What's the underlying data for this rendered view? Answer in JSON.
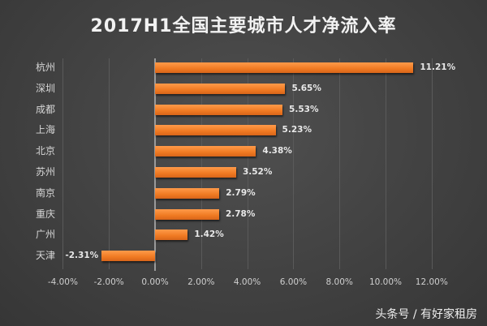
{
  "title": "2017H1全国主要城市人才净流入率",
  "watermark": "头条号 / 有好家租房",
  "colors": {
    "bar": "#f07a22",
    "background": "#444444",
    "text": "#e8e8e8"
  },
  "chart_data": {
    "type": "bar",
    "orientation": "horizontal",
    "title": "2017H1全国主要城市人才净流入率",
    "categories": [
      "杭州",
      "深圳",
      "成都",
      "上海",
      "北京",
      "苏州",
      "南京",
      "重庆",
      "广州",
      "天津"
    ],
    "values": [
      11.21,
      5.65,
      5.53,
      5.23,
      4.38,
      3.52,
      2.79,
      2.78,
      1.42,
      -2.31
    ],
    "value_labels": [
      "11.21%",
      "5.65%",
      "5.53%",
      "5.23%",
      "4.38%",
      "3.52%",
      "2.79%",
      "2.78%",
      "1.42%",
      "-2.31%"
    ],
    "xlabel": "",
    "ylabel": "",
    "xlim": [
      -4,
      12
    ],
    "x_ticks": [
      "-4.00%",
      "-2.00%",
      "0.00%",
      "2.00%",
      "4.00%",
      "6.00%",
      "8.00%",
      "10.00%",
      "12.00%"
    ],
    "grid": true,
    "legend": "none"
  }
}
